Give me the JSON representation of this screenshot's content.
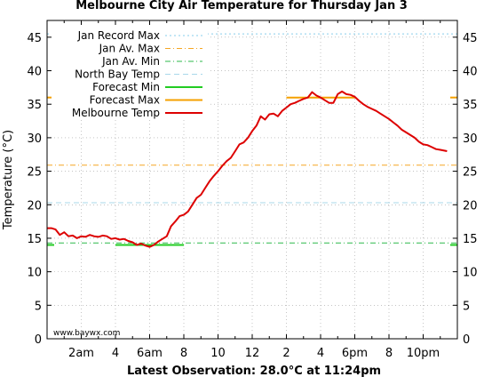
{
  "chart_data": {
    "type": "line",
    "title": "Melbourne City Air Temperature  for Thursday Jan 3",
    "ylabel": "Temperature (°C)",
    "footer": "Latest Observation: 28.0°C at 11:24pm",
    "credit": "www.baywx.com",
    "xlim": [
      0,
      24
    ],
    "ylim": [
      0,
      47.5
    ],
    "y_ticks": [
      0,
      5,
      10,
      15,
      20,
      25,
      30,
      35,
      40,
      45
    ],
    "x_ticks": [
      {
        "h": 2,
        "label": "2am"
      },
      {
        "h": 4,
        "label": "4"
      },
      {
        "h": 6,
        "label": "6am"
      },
      {
        "h": 8,
        "label": "8"
      },
      {
        "h": 10,
        "label": "10"
      },
      {
        "h": 12,
        "label": "12"
      },
      {
        "h": 14,
        "label": "2"
      },
      {
        "h": 16,
        "label": "4"
      },
      {
        "h": 18,
        "label": "6pm"
      },
      {
        "h": 20,
        "label": "8"
      },
      {
        "h": 22,
        "label": "10pm"
      }
    ],
    "grid": true,
    "legend_position": "top-left",
    "series": [
      {
        "name": "Jan Record Max",
        "style": "dotted",
        "color": "#87ceeb",
        "x": [
          0,
          24
        ],
        "y": [
          45.5,
          45.5
        ]
      },
      {
        "name": "Jan Av. Max",
        "style": "dashdot",
        "color": "#f5a623",
        "x": [
          0,
          24
        ],
        "y": [
          25.9,
          25.9
        ]
      },
      {
        "name": "Jan Av. Min",
        "style": "dashdot",
        "color": "#2db84b",
        "x": [
          0,
          24
        ],
        "y": [
          14.3,
          14.3
        ]
      },
      {
        "name": "North Bay Temp",
        "style": "dashed",
        "color": "#a8d8ea",
        "x": [
          0,
          24
        ],
        "y": [
          20.3,
          20.3
        ]
      },
      {
        "name": "Forecast Min",
        "style": "solid",
        "color": "#22cc22",
        "x": [
          4,
          8
        ],
        "y": [
          14,
          14
        ],
        "edge_ticks": true
      },
      {
        "name": "Forecast Max",
        "style": "solid",
        "color": "#f5a000",
        "x": [
          14,
          18
        ],
        "y": [
          36,
          36
        ],
        "edge_ticks": true
      },
      {
        "name": "Melbourne Temp",
        "style": "solid",
        "color": "#dd0000",
        "x": [
          0,
          0.25,
          0.5,
          0.75,
          1.0,
          1.25,
          1.5,
          1.75,
          2.0,
          2.25,
          2.5,
          2.75,
          3.0,
          3.25,
          3.5,
          3.75,
          4.0,
          4.25,
          4.5,
          4.75,
          5.0,
          5.25,
          5.5,
          5.75,
          6.0,
          6.25,
          6.5,
          6.75,
          7.0,
          7.25,
          7.5,
          7.75,
          8.0,
          8.25,
          8.5,
          8.75,
          9.0,
          9.25,
          9.5,
          9.75,
          10.0,
          10.25,
          10.5,
          10.75,
          11.0,
          11.25,
          11.5,
          11.75,
          12.0,
          12.25,
          12.5,
          12.75,
          13.0,
          13.25,
          13.5,
          13.75,
          14.0,
          14.25,
          14.5,
          14.75,
          15.0,
          15.25,
          15.5,
          15.75,
          16.0,
          16.25,
          16.5,
          16.75,
          17.0,
          17.25,
          17.5,
          17.75,
          18.0,
          18.25,
          18.5,
          18.75,
          19.0,
          19.25,
          19.5,
          19.75,
          20.0,
          20.25,
          20.5,
          20.75,
          21.0,
          21.25,
          21.5,
          21.75,
          22.0,
          22.25,
          22.5,
          22.75,
          23.0,
          23.4
        ],
        "y": [
          16.5,
          16.5,
          16.3,
          15.5,
          15.9,
          15.3,
          15.4,
          15.0,
          15.3,
          15.2,
          15.5,
          15.3,
          15.2,
          15.4,
          15.3,
          14.9,
          15.0,
          14.8,
          14.9,
          14.6,
          14.4,
          14.0,
          14.2,
          13.9,
          13.7,
          14.0,
          14.5,
          14.9,
          15.3,
          16.8,
          17.5,
          18.3,
          18.5,
          19.0,
          20.0,
          21.0,
          21.5,
          22.5,
          23.5,
          24.3,
          25.0,
          25.8,
          26.5,
          27.0,
          28.0,
          29.0,
          29.3,
          30.0,
          31.0,
          31.8,
          33.2,
          32.7,
          33.5,
          33.6,
          33.2,
          34.0,
          34.5,
          35.0,
          35.2,
          35.5,
          35.8,
          36.0,
          36.8,
          36.3,
          36.0,
          35.6,
          35.2,
          35.2,
          36.5,
          36.9,
          36.5,
          36.4,
          36.1,
          35.5,
          35.0,
          34.6,
          34.3,
          34.0,
          33.6,
          33.2,
          32.8,
          32.3,
          31.8,
          31.2,
          30.8,
          30.4,
          30.0,
          29.4,
          29.0,
          28.9,
          28.6,
          28.3,
          28.2,
          28.0
        ]
      }
    ]
  }
}
